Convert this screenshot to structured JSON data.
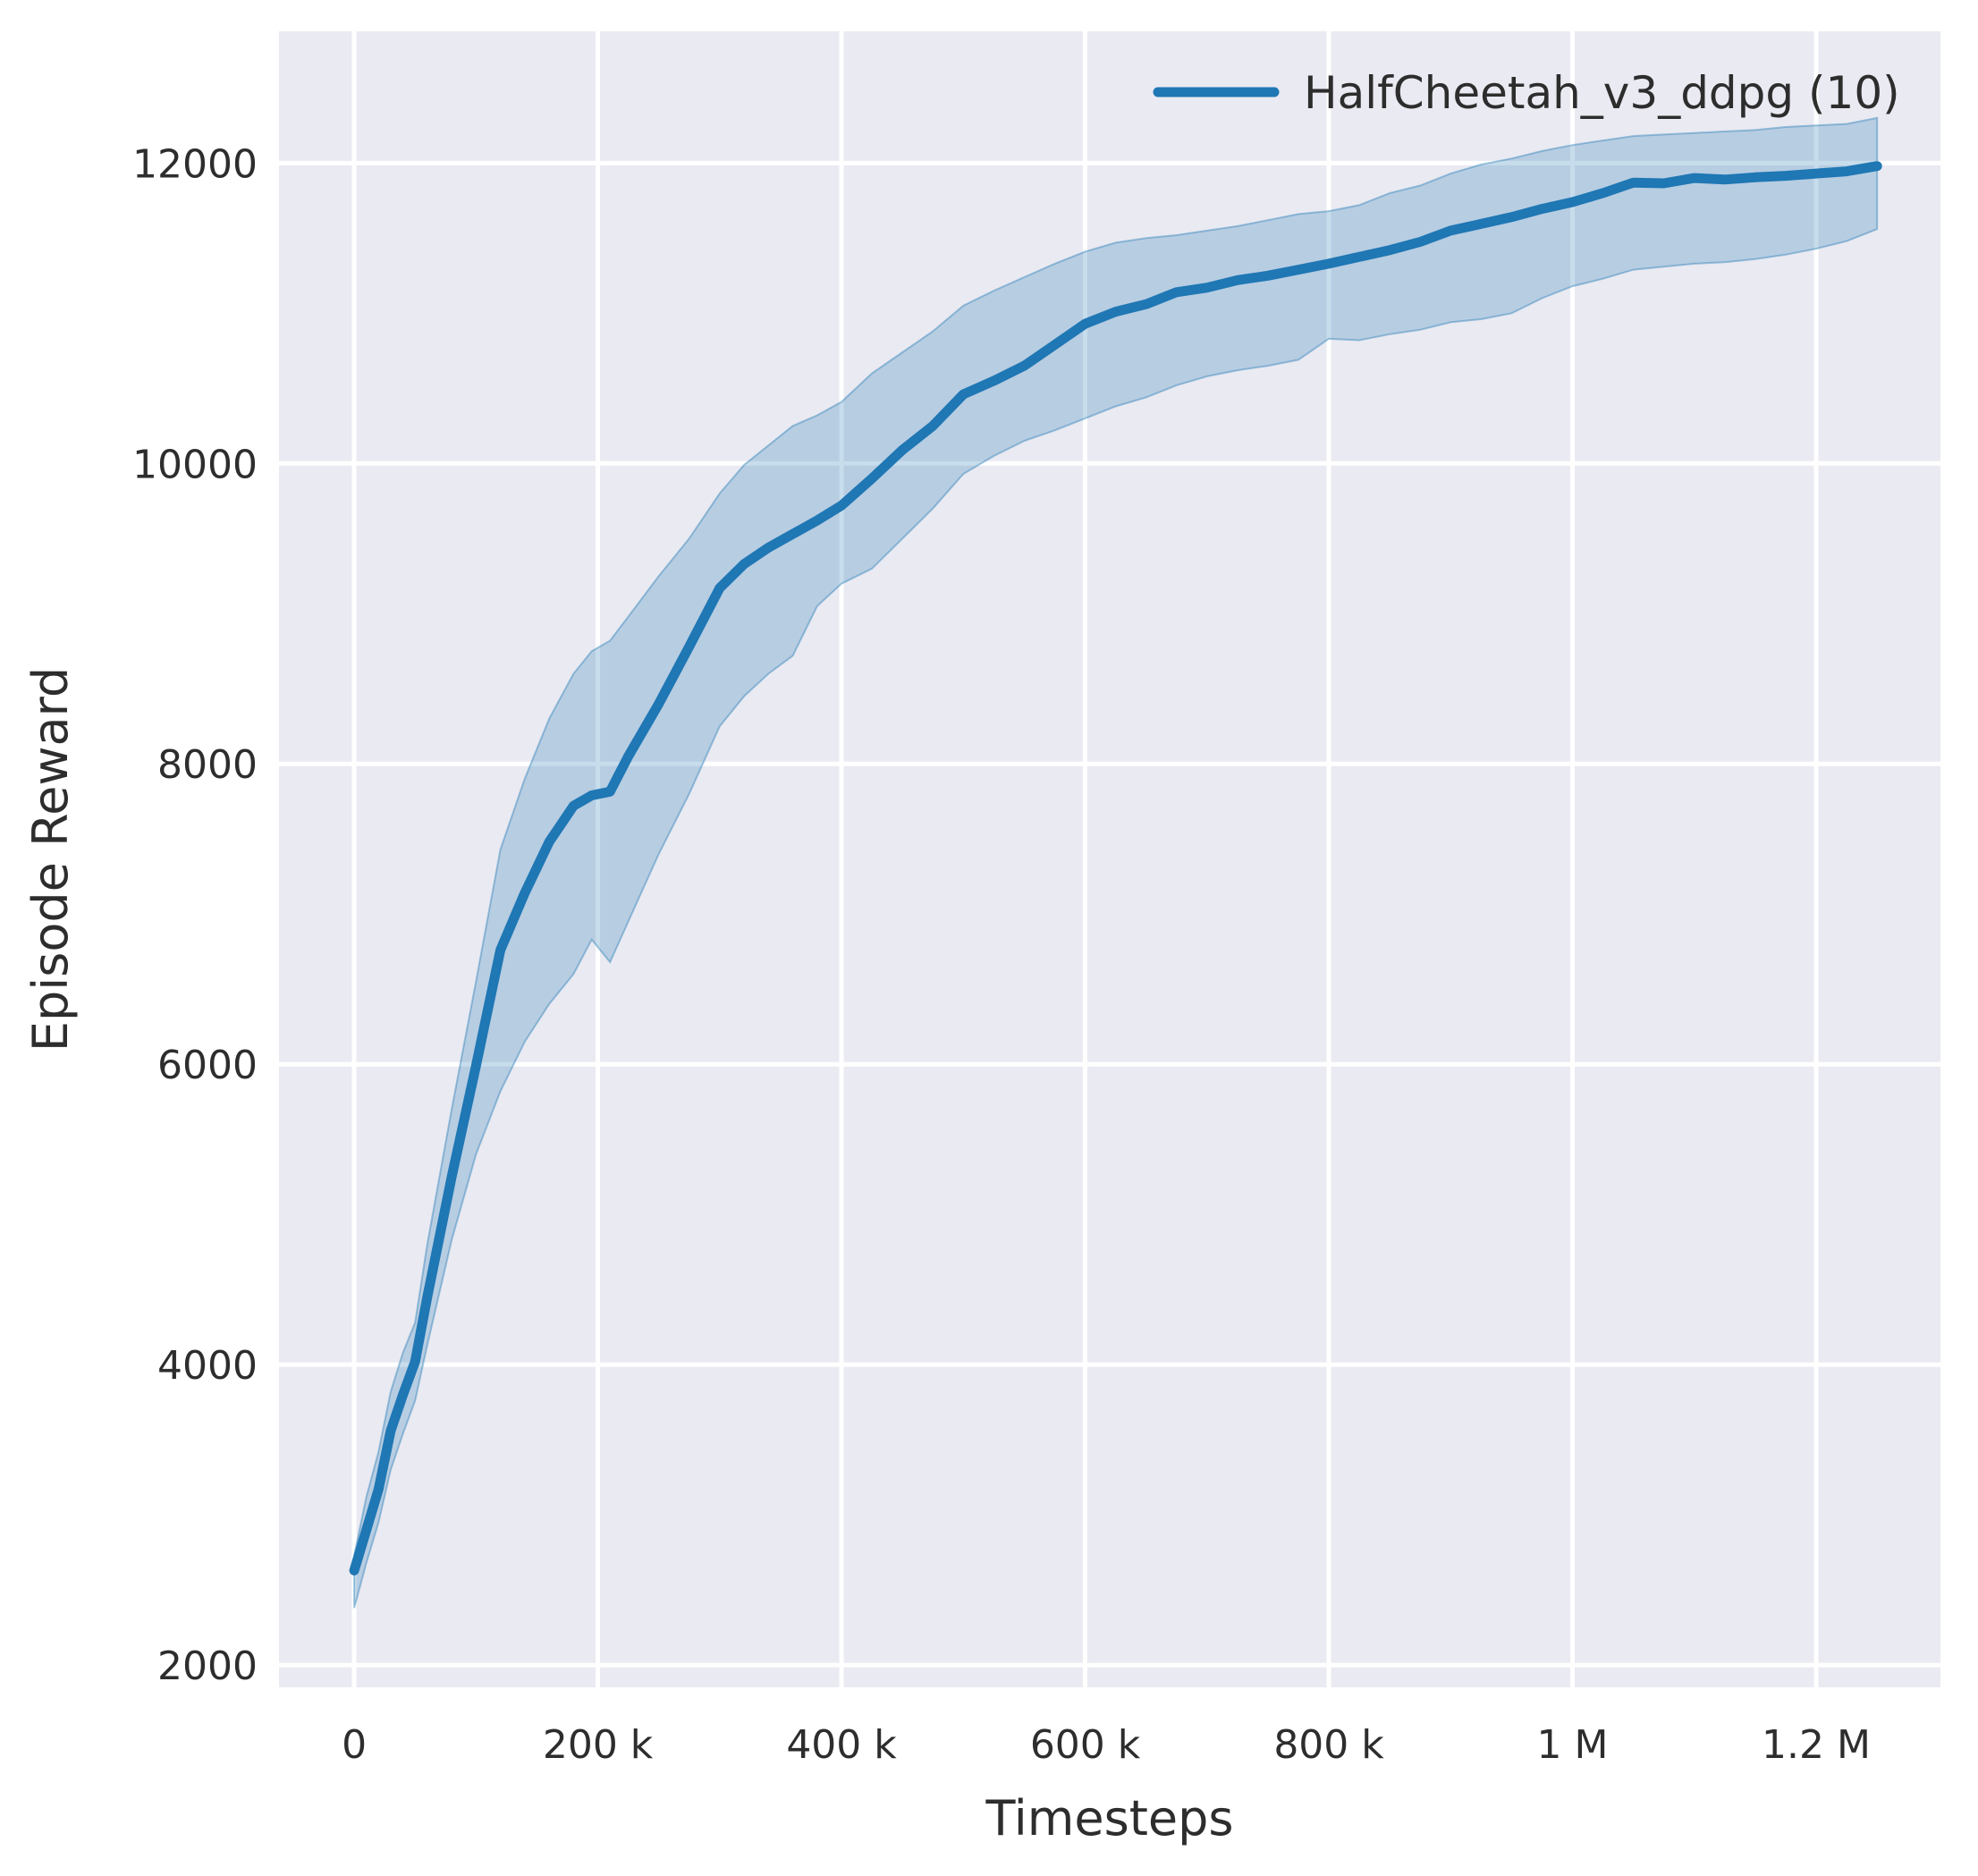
{
  "chart_data": {
    "type": "line",
    "title": "",
    "xlabel": "Timesteps",
    "ylabel": "Episode Reward",
    "legend_position": "upper right",
    "grid": true,
    "background_color": "#eaeaf2",
    "gridline_color": "#ffffff",
    "xlim": [
      -61700,
      1302000
    ],
    "ylim": [
      1852,
      12877
    ],
    "x_ticks": [
      {
        "value": 0,
        "label": "0"
      },
      {
        "value": 200000,
        "label": "200 k"
      },
      {
        "value": 400000,
        "label": "400 k"
      },
      {
        "value": 600000,
        "label": "600 k"
      },
      {
        "value": 800000,
        "label": "800 k"
      },
      {
        "value": 1000000,
        "label": "1 M"
      },
      {
        "value": 1200000,
        "label": "1.2 M"
      }
    ],
    "y_ticks": [
      {
        "value": 2000,
        "label": "2000"
      },
      {
        "value": 4000,
        "label": "4000"
      },
      {
        "value": 6000,
        "label": "6000"
      },
      {
        "value": 8000,
        "label": "8000"
      },
      {
        "value": 10000,
        "label": "10000"
      },
      {
        "value": 12000,
        "label": "12000"
      }
    ],
    "legend": [
      {
        "label": "HalfCheetah_v3_ddpg (10)",
        "color": "#1f77b4"
      }
    ],
    "series": [
      {
        "name": "HalfCheetah_v3_ddpg (10)",
        "color": "#1f77b4",
        "band_alpha": 0.25,
        "x": [
          0,
          10000,
          20000,
          30000,
          40000,
          50000,
          60000,
          80000,
          100000,
          120000,
          140000,
          160000,
          180000,
          195000,
          210000,
          225000,
          250000,
          275000,
          300000,
          320000,
          340000,
          360000,
          380000,
          400000,
          425000,
          450000,
          475000,
          500000,
          525000,
          550000,
          575000,
          600000,
          625000,
          650000,
          675000,
          700000,
          725000,
          750000,
          775000,
          800000,
          825000,
          850000,
          875000,
          900000,
          925000,
          950000,
          975000,
          1000000,
          1025000,
          1050000,
          1075000,
          1100000,
          1125000,
          1150000,
          1175000,
          1200000,
          1225000,
          1250000
        ],
        "mean": [
          2630,
          2900,
          3170,
          3560,
          3800,
          4020,
          4450,
          5250,
          5990,
          6760,
          7140,
          7480,
          7720,
          7790,
          7815,
          8050,
          8400,
          8780,
          9170,
          9330,
          9440,
          9530,
          9620,
          9720,
          9900,
          10090,
          10250,
          10460,
          10550,
          10650,
          10790,
          10930,
          11010,
          11060,
          11140,
          11170,
          11220,
          11250,
          11290,
          11330,
          11375,
          11420,
          11475,
          11550,
          11595,
          11640,
          11695,
          11740,
          11800,
          11870,
          11865,
          11900,
          11890,
          11905,
          11915,
          11930,
          11945,
          11980
        ],
        "lower": [
          2380,
          2680,
          2950,
          3300,
          3540,
          3760,
          4130,
          4830,
          5400,
          5820,
          6150,
          6400,
          6600,
          6830,
          6680,
          6950,
          7400,
          7800,
          8250,
          8450,
          8600,
          8720,
          9050,
          9200,
          9300,
          9500,
          9700,
          9930,
          10050,
          10150,
          10220,
          10300,
          10380,
          10440,
          10520,
          10580,
          10620,
          10650,
          10690,
          10830,
          10820,
          10860,
          10890,
          10940,
          10960,
          11000,
          11100,
          11180,
          11230,
          11290,
          11310,
          11330,
          11340,
          11360,
          11390,
          11430,
          11480,
          11560
        ],
        "upper": [
          2730,
          3120,
          3420,
          3820,
          4080,
          4280,
          4800,
          5700,
          6550,
          7430,
          7900,
          8300,
          8600,
          8750,
          8820,
          8980,
          9250,
          9500,
          9800,
          9990,
          10120,
          10250,
          10320,
          10410,
          10600,
          10740,
          10880,
          11050,
          11150,
          11240,
          11330,
          11410,
          11470,
          11500,
          11520,
          11550,
          11580,
          11620,
          11660,
          11680,
          11720,
          11800,
          11850,
          11930,
          11990,
          12030,
          12080,
          12120,
          12150,
          12180,
          12190,
          12200,
          12210,
          12220,
          12240,
          12250,
          12260,
          12300
        ]
      }
    ]
  }
}
